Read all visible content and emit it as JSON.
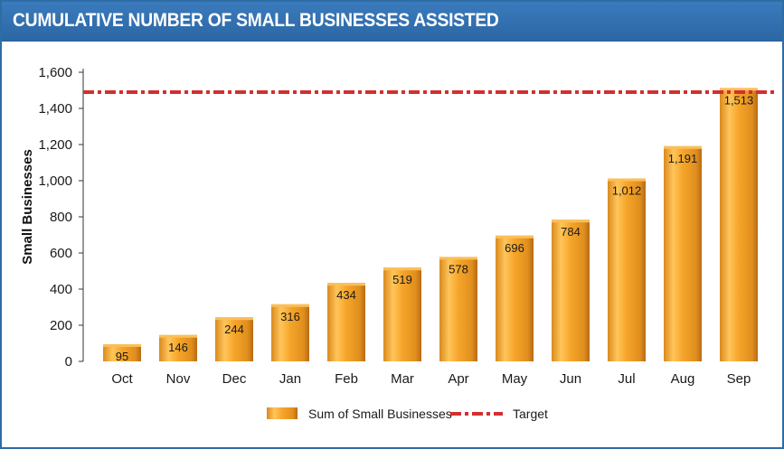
{
  "header": {
    "title": "CUMULATIVE NUMBER OF SMALL BUSINESSES ASSISTED"
  },
  "chart_data": {
    "type": "bar",
    "title": "CUMULATIVE NUMBER OF SMALL BUSINESSES ASSISTED",
    "xlabel": "",
    "ylabel": "Small Businesses",
    "ylim": [
      0,
      1600
    ],
    "yticks": [
      0,
      200,
      400,
      600,
      800,
      1000,
      1200,
      1400,
      1600
    ],
    "ytick_labels": [
      "0",
      "200",
      "400",
      "600",
      "800",
      "1,000",
      "1,200",
      "1,400",
      "1,600"
    ],
    "categories": [
      "Oct",
      "Nov",
      "Dec",
      "Jan",
      "Feb",
      "Mar",
      "Apr",
      "May",
      "Jun",
      "Jul",
      "Aug",
      "Sep"
    ],
    "series": [
      {
        "name": "Sum of Small Businesses",
        "values": [
          95,
          146,
          244,
          316,
          434,
          519,
          578,
          696,
          784,
          1012,
          1191,
          1513
        ],
        "labels": [
          "95",
          "146",
          "244",
          "316",
          "434",
          "519",
          "578",
          "696",
          "784",
          "1,012",
          "1,191",
          "1,513"
        ]
      }
    ],
    "target": {
      "name": "Target",
      "value": 1490
    },
    "legend": [
      "Sum of Small Businesses",
      "Target"
    ],
    "legend_position": "bottom",
    "grid": false
  },
  "colors": {
    "header": "#2e6da4",
    "bar_light": "#ffd27a",
    "bar_mid": "#f5a623",
    "bar_dark": "#c9761a",
    "target": "#d32f2f"
  }
}
